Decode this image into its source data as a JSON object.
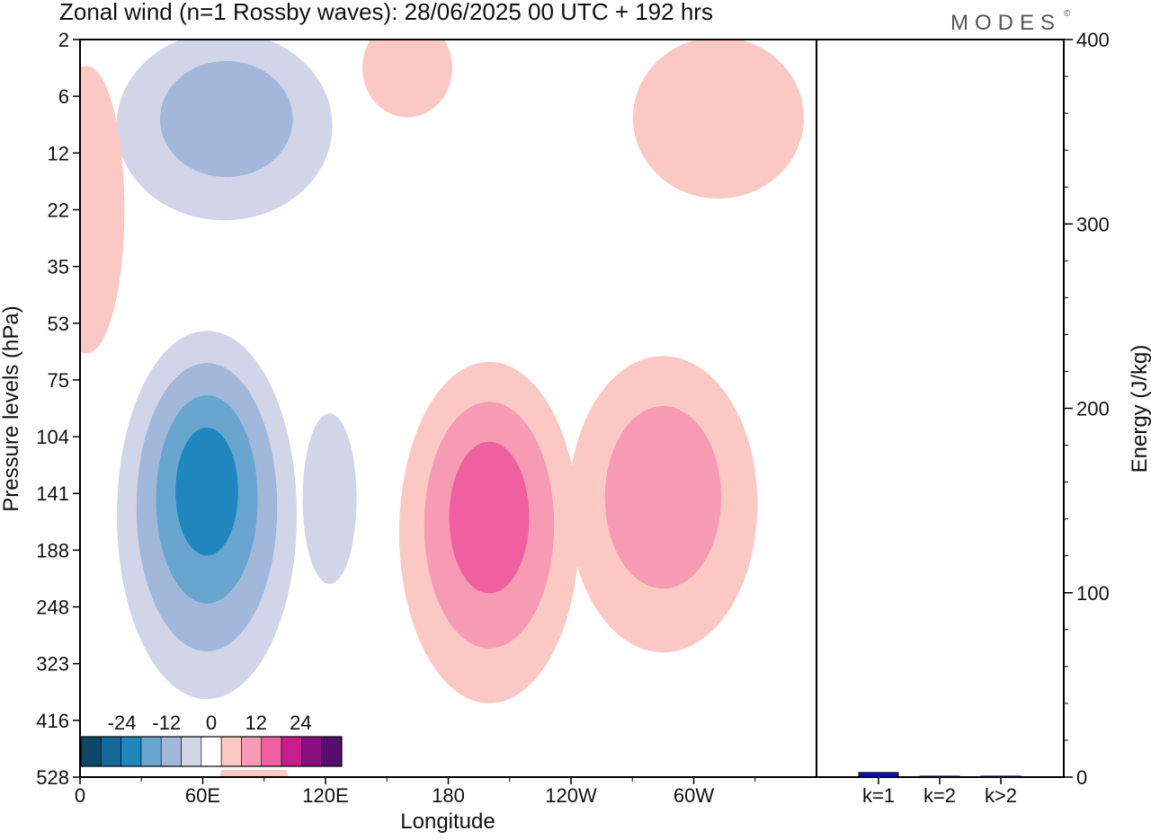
{
  "header": {
    "title": "Zonal wind (n=1 Rossby waves):  28/06/2025  00 UTC  + 192 hrs",
    "brand": "MODES",
    "brand_mark": "©"
  },
  "chart_data": [
    {
      "type": "heatmap",
      "title": "Zonal wind (n=1 Rossby waves):  28/06/2025  00 UTC  + 192 hrs",
      "xlabel": "Longitude",
      "ylabel": "Pressure levels (hPa)",
      "x_ticks": [
        "0",
        "60E",
        "120E",
        "180",
        "120W",
        "60W"
      ],
      "x_tick_degrees": [
        0,
        60,
        120,
        180,
        240,
        300
      ],
      "xlim": [
        0,
        360
      ],
      "y_ticks": [
        "2",
        "6",
        "12",
        "22",
        "35",
        "53",
        "75",
        "104",
        "141",
        "188",
        "248",
        "323",
        "416",
        "528"
      ],
      "y_axis": "top-to-bottom by level index",
      "colorbar": {
        "labels": [
          "-24",
          "-12",
          "0",
          "12",
          "24"
        ],
        "label_positions": [
          -24,
          -12,
          0,
          12,
          24
        ],
        "levels": [
          -30,
          -25,
          -20,
          -15,
          -10,
          -5,
          0,
          5,
          10,
          15,
          20,
          25,
          30
        ],
        "colors": [
          "#0f4866",
          "#17699b",
          "#1f86be",
          "#68a5cf",
          "#a1b8da",
          "#d2d4e8",
          "#ffffff",
          "#fbc8c4",
          "#f79ab3",
          "#f060a0",
          "#c81e8c",
          "#8c0f7f",
          "#550d6e"
        ],
        "placement": "bottom-left"
      },
      "features": [
        {
          "sign": "negative",
          "lon": 62,
          "level": 141,
          "peak": -22
        },
        {
          "sign": "negative",
          "lon": 60,
          "level": 8,
          "peak": -10
        },
        {
          "sign": "negative",
          "lon": 122,
          "level": 141,
          "peak": -7
        },
        {
          "sign": "positive",
          "lon": 200,
          "level": 160,
          "peak": 17
        },
        {
          "sign": "positive",
          "lon": 285,
          "level": 141,
          "peak": 12
        },
        {
          "sign": "positive",
          "lon": 85,
          "level": 528,
          "peak": 3
        },
        {
          "sign": "positive",
          "lon": 5,
          "level": 22,
          "peak": 3
        },
        {
          "sign": "positive",
          "lon": 305,
          "level": 6,
          "peak": 4
        },
        {
          "sign": "positive",
          "lon": 160,
          "level": 4,
          "peak": 3
        }
      ]
    },
    {
      "type": "bar",
      "categories": [
        "k=1",
        "k=2",
        "k>2"
      ],
      "values": [
        2.5,
        0.5,
        0.5
      ],
      "ylabel": "Energy (J/kg)",
      "ylim": [
        0,
        400
      ],
      "y_ticks": [
        "0",
        "100",
        "200",
        "300",
        "400"
      ],
      "y_tick_values": [
        0,
        100,
        200,
        300,
        400
      ],
      "bar_color": "#1010b0"
    }
  ]
}
